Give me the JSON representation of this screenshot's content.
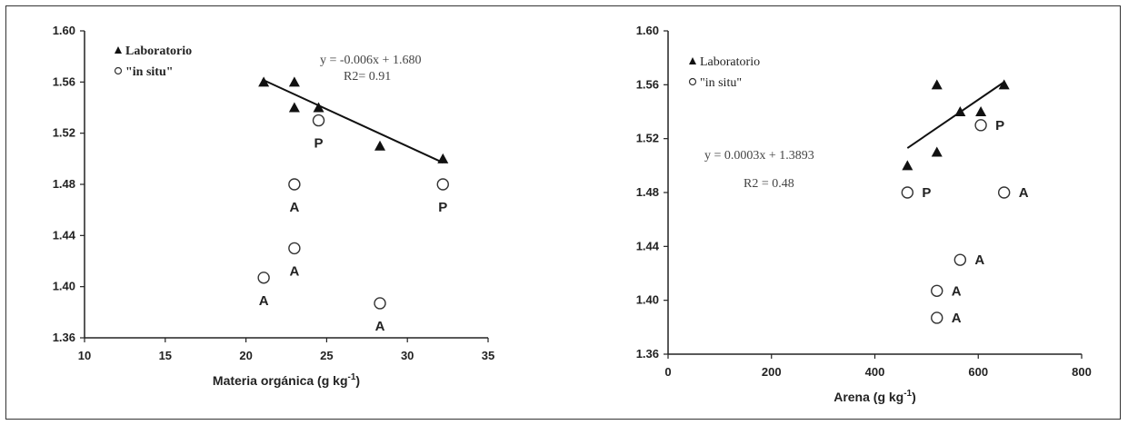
{
  "chart_data": [
    {
      "type": "scatter",
      "xlabel": "Materia orgánica (g kg",
      "xlabel_sup": "-1",
      "xlabel_close": ")",
      "ylabel": "",
      "xlim": [
        10,
        35
      ],
      "ylim": [
        1.36,
        1.6
      ],
      "x_ticks": [
        "10",
        "15",
        "20",
        "25",
        "30",
        "35"
      ],
      "y_ticks": [
        "1.36",
        "1.40",
        "1.44",
        "1.48",
        "1.52",
        "1.56",
        "1.60"
      ],
      "legend": [
        {
          "symbol": "triangle",
          "label": "Laboratorio"
        },
        {
          "symbol": "circle",
          "label": "\"in situ\""
        }
      ],
      "equation": "y = -0.006x + 1.680",
      "r2": "R2= 0.91",
      "trendline": {
        "x1": 21,
        "y1": 1.562,
        "x2": 32.2,
        "y2": 1.497
      },
      "series": [
        {
          "name": "Laboratorio",
          "marker": "triangle",
          "points": [
            {
              "x": 21.1,
              "y": 1.56
            },
            {
              "x": 23.0,
              "y": 1.56
            },
            {
              "x": 23.0,
              "y": 1.54
            },
            {
              "x": 24.5,
              "y": 1.54
            },
            {
              "x": 28.3,
              "y": 1.51
            },
            {
              "x": 32.2,
              "y": 1.5
            }
          ]
        },
        {
          "name": "\"in situ\"",
          "marker": "circle",
          "points": [
            {
              "x": 24.5,
              "y": 1.53,
              "label": "P"
            },
            {
              "x": 23.0,
              "y": 1.48,
              "label": "A"
            },
            {
              "x": 32.2,
              "y": 1.48,
              "label": "P"
            },
            {
              "x": 23.0,
              "y": 1.43,
              "label": "A"
            },
            {
              "x": 21.1,
              "y": 1.407,
              "label": "A"
            },
            {
              "x": 28.3,
              "y": 1.387,
              "label": "A"
            }
          ]
        }
      ]
    },
    {
      "type": "scatter",
      "xlabel": "Arena (g kg",
      "xlabel_sup": "-1",
      "xlabel_close": ")",
      "ylabel": "",
      "xlim": [
        0,
        800
      ],
      "ylim": [
        1.36,
        1.6
      ],
      "x_ticks": [
        "0",
        "200",
        "400",
        "600",
        "800"
      ],
      "y_ticks": [
        "1.36",
        "1.40",
        "1.44",
        "1.48",
        "1.52",
        "1.56",
        "1.60"
      ],
      "legend": [
        {
          "symbol": "triangle",
          "label": "Laboratorio"
        },
        {
          "symbol": "circle",
          "label": "\"in situ\""
        }
      ],
      "equation": "y = 0.0003x + 1.3893",
      "r2": "R2 = 0.48",
      "trendline": {
        "x1": 463,
        "y1": 1.513,
        "x2": 650,
        "y2": 1.562
      },
      "series": [
        {
          "name": "Laboratorio",
          "marker": "triangle",
          "points": [
            {
              "x": 463,
              "y": 1.5
            },
            {
              "x": 520,
              "y": 1.56
            },
            {
              "x": 520,
              "y": 1.51
            },
            {
              "x": 565,
              "y": 1.54
            },
            {
              "x": 605,
              "y": 1.54
            },
            {
              "x": 650,
              "y": 1.56
            }
          ]
        },
        {
          "name": "\"in situ\"",
          "marker": "circle",
          "points": [
            {
              "x": 605,
              "y": 1.53,
              "label": "P"
            },
            {
              "x": 463,
              "y": 1.48,
              "label": "P"
            },
            {
              "x": 650,
              "y": 1.48,
              "label": "A"
            },
            {
              "x": 565,
              "y": 1.43,
              "label": "A"
            },
            {
              "x": 520,
              "y": 1.407,
              "label": "A"
            },
            {
              "x": 520,
              "y": 1.387,
              "label": "A"
            }
          ]
        }
      ]
    }
  ]
}
